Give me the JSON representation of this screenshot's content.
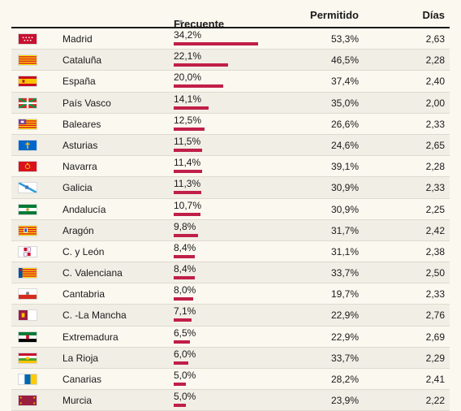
{
  "header": {
    "frecuente": "Frecuente",
    "permitido": "Permitido",
    "dias": "Días",
    "sort_icon": "sort-desc-icon"
  },
  "colors": {
    "bar": "#c01f48",
    "accent": "#c01f48"
  },
  "rows": [
    {
      "region": "Madrid",
      "frecuente": "34,2%",
      "frecuente_value": 34.2,
      "permitido": "53,3%",
      "dias": "2,63",
      "flag": "madrid-flag-icon"
    },
    {
      "region": "Cataluña",
      "frecuente": "22,1%",
      "frecuente_value": 22.1,
      "permitido": "46,5%",
      "dias": "2,28",
      "flag": "cataluna-flag-icon"
    },
    {
      "region": "España",
      "frecuente": "20,0%",
      "frecuente_value": 20.0,
      "permitido": "37,4%",
      "dias": "2,40",
      "flag": "espana-flag-icon"
    },
    {
      "region": "País Vasco",
      "frecuente": "14,1%",
      "frecuente_value": 14.1,
      "permitido": "35,0%",
      "dias": "2,00",
      "flag": "pais-vasco-flag-icon"
    },
    {
      "region": "Baleares",
      "frecuente": "12,5%",
      "frecuente_value": 12.5,
      "permitido": "26,6%",
      "dias": "2,33",
      "flag": "baleares-flag-icon"
    },
    {
      "region": "Asturias",
      "frecuente": "11,5%",
      "frecuente_value": 11.5,
      "permitido": "24,6%",
      "dias": "2,65",
      "flag": "asturias-flag-icon"
    },
    {
      "region": "Navarra",
      "frecuente": "11,4%",
      "frecuente_value": 11.4,
      "permitido": "39,1%",
      "dias": "2,28",
      "flag": "navarra-flag-icon"
    },
    {
      "region": "Galicia",
      "frecuente": "11,3%",
      "frecuente_value": 11.3,
      "permitido": "30,9%",
      "dias": "2,33",
      "flag": "galicia-flag-icon"
    },
    {
      "region": "Andalucía",
      "frecuente": "10,7%",
      "frecuente_value": 10.7,
      "permitido": "30,9%",
      "dias": "2,25",
      "flag": "andalucia-flag-icon"
    },
    {
      "region": "Aragón",
      "frecuente": "9,8%",
      "frecuente_value": 9.8,
      "permitido": "31,7%",
      "dias": "2,42",
      "flag": "aragon-flag-icon"
    },
    {
      "region": "C. y León",
      "frecuente": "8,4%",
      "frecuente_value": 8.4,
      "permitido": "31,1%",
      "dias": "2,38",
      "flag": "castilla-leon-flag-icon"
    },
    {
      "region": "C. Valenciana",
      "frecuente": "8,4%",
      "frecuente_value": 8.4,
      "permitido": "33,7%",
      "dias": "2,50",
      "flag": "valencia-flag-icon"
    },
    {
      "region": "Cantabria",
      "frecuente": "8,0%",
      "frecuente_value": 8.0,
      "permitido": "19,7%",
      "dias": "2,33",
      "flag": "cantabria-flag-icon"
    },
    {
      "region": "C. -La Mancha",
      "frecuente": "7,1%",
      "frecuente_value": 7.1,
      "permitido": "22,9%",
      "dias": "2,76",
      "flag": "castilla-la-mancha-flag-icon"
    },
    {
      "region": "Extremadura",
      "frecuente": "6,5%",
      "frecuente_value": 6.5,
      "permitido": "22,9%",
      "dias": "2,69",
      "flag": "extremadura-flag-icon"
    },
    {
      "region": "La Rioja",
      "frecuente": "6,0%",
      "frecuente_value": 6.0,
      "permitido": "33,7%",
      "dias": "2,29",
      "flag": "la-rioja-flag-icon"
    },
    {
      "region": "Canarias",
      "frecuente": "5,0%",
      "frecuente_value": 5.0,
      "permitido": "28,2%",
      "dias": "2,41",
      "flag": "canarias-flag-icon"
    },
    {
      "region": "Murcia",
      "frecuente": "5,0%",
      "frecuente_value": 5.0,
      "permitido": "23,9%",
      "dias": "2,22",
      "flag": "murcia-flag-icon"
    }
  ]
}
